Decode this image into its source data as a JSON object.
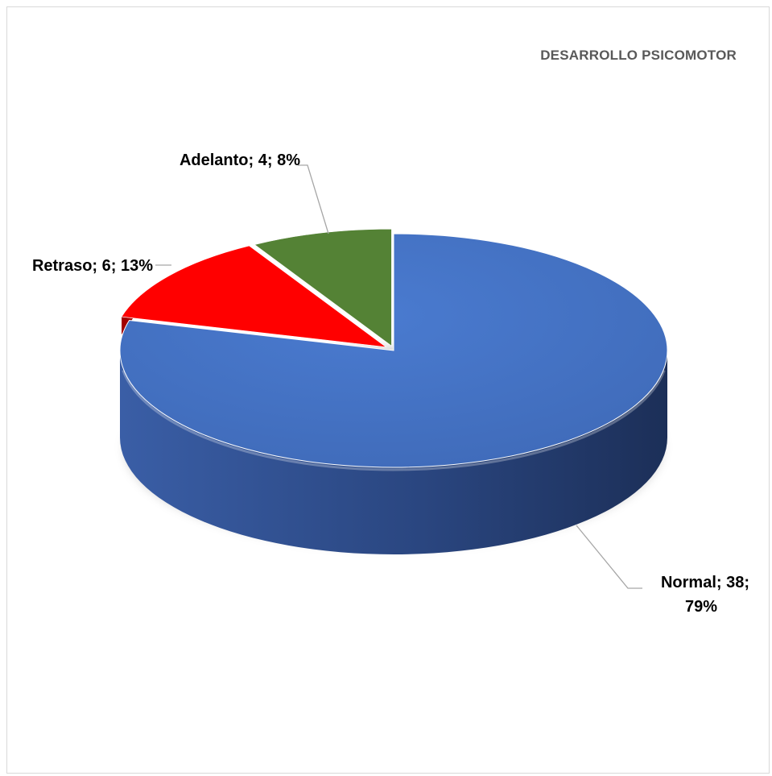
{
  "chart_data": {
    "type": "pie",
    "title": "DESARROLLO PSICOMOTOR",
    "categories": [
      "Normal",
      "Adelanto",
      "Retraso"
    ],
    "values": [
      38,
      4,
      6
    ],
    "percents": [
      79,
      8,
      13
    ],
    "labels": {
      "normal_line1": "Normal; 38;",
      "normal_line2": "79%",
      "adelanto": "Adelanto; 4; 8%",
      "retraso": "Retraso; 6; 13%"
    },
    "colors": [
      "#4472c4",
      "#548235",
      "#ff0000"
    ],
    "side_colors": [
      "#2e4b82",
      "#37571f",
      "#a10000"
    ],
    "legend": "none",
    "style": "3d-pie"
  }
}
